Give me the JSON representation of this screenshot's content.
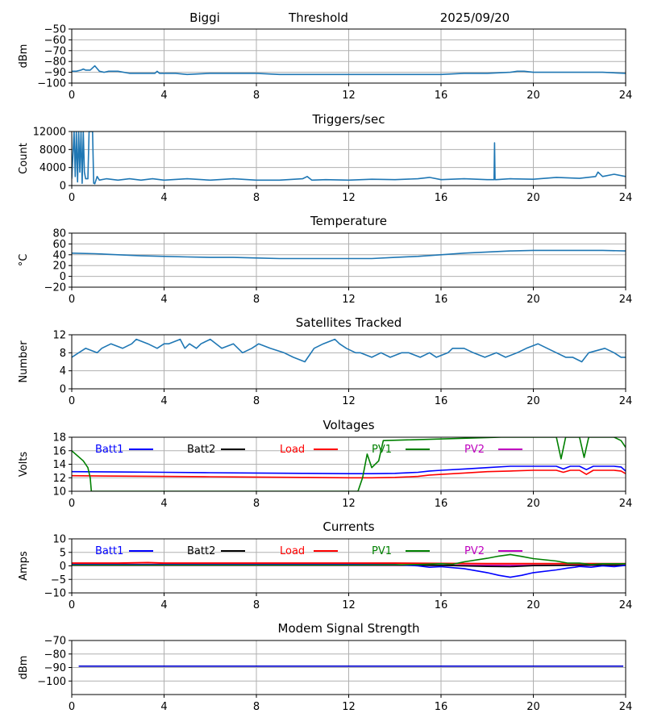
{
  "header": {
    "station": "Biggi",
    "mode": "Threshold",
    "date": "2025/09/20"
  },
  "colors": {
    "default": "#1f77b4",
    "batt1": "#0000ff",
    "batt2": "#000000",
    "load": "#ff0000",
    "pv1": "#008000",
    "pv2": "#bf00bf",
    "modem": "#0000cc"
  },
  "chart_data": [
    {
      "id": "threshold",
      "type": "line",
      "title": "",
      "ylabel": "dBm",
      "xlim": [
        0,
        24
      ],
      "ylim": [
        -100,
        -50
      ],
      "xticks": [
        0,
        4,
        8,
        12,
        16,
        20,
        24
      ],
      "yticks": [
        -100,
        -90,
        -80,
        -70,
        -60,
        -50
      ],
      "series": [
        {
          "name": "threshold",
          "color": "#1f77b4",
          "x": [
            0,
            0.2,
            0.4,
            0.5,
            0.6,
            0.8,
            1.0,
            1.2,
            1.4,
            1.6,
            2.0,
            2.5,
            3.0,
            3.6,
            3.7,
            3.8,
            4.5,
            5.0,
            6.0,
            7.0,
            8.0,
            9.0,
            10.0,
            11.0,
            12.0,
            13.0,
            14.0,
            15.0,
            16.0,
            17.0,
            18.0,
            19.0,
            19.3,
            19.6,
            20.0,
            21.0,
            22.0,
            23.0,
            24.0
          ],
          "y": [
            -89,
            -89,
            -88,
            -87,
            -88,
            -88,
            -84,
            -89,
            -90,
            -89,
            -89,
            -91,
            -91,
            -91,
            -89,
            -91,
            -91,
            -92,
            -91,
            -91,
            -91,
            -92,
            -92,
            -92,
            -92,
            -92,
            -92,
            -92,
            -92,
            -91,
            -91,
            -90,
            -89,
            -89,
            -90,
            -90,
            -90,
            -90,
            -91
          ]
        }
      ]
    },
    {
      "id": "triggers",
      "type": "line",
      "title": "Triggers/sec",
      "ylabel": "Count",
      "xlim": [
        0,
        24
      ],
      "ylim": [
        0,
        12000
      ],
      "xticks": [
        0,
        4,
        8,
        12,
        16,
        20,
        24
      ],
      "yticks": [
        0,
        4000,
        8000,
        12000
      ],
      "series": [
        {
          "name": "triggers",
          "color": "#1f77b4",
          "x": [
            0,
            0.1,
            0.15,
            0.2,
            0.25,
            0.3,
            0.35,
            0.4,
            0.45,
            0.5,
            0.55,
            0.6,
            0.7,
            0.75,
            0.8,
            0.85,
            0.9,
            0.95,
            1.0,
            1.1,
            1.2,
            1.5,
            2.0,
            2.5,
            3.0,
            3.5,
            4.0,
            5.0,
            6.0,
            7.0,
            8.0,
            9.0,
            10.0,
            10.2,
            10.4,
            11.0,
            12.0,
            13.0,
            14.0,
            15.0,
            15.5,
            16.0,
            17.0,
            18.0,
            18.3,
            18.32,
            18.34,
            18.4,
            19.0,
            20.0,
            21.0,
            22.0,
            22.7,
            22.8,
            23.0,
            23.5,
            24.0
          ],
          "y": [
            1500,
            12000,
            2000,
            12000,
            800,
            12000,
            3000,
            12000,
            500,
            12000,
            3000,
            1500,
            1500,
            12000,
            12000,
            12000,
            12000,
            500,
            400,
            2000,
            1200,
            1500,
            1200,
            1500,
            1200,
            1500,
            1200,
            1500,
            1200,
            1500,
            1200,
            1200,
            1500,
            2000,
            1200,
            1300,
            1200,
            1400,
            1300,
            1500,
            1800,
            1300,
            1500,
            1300,
            1300,
            9500,
            1300,
            1300,
            1500,
            1400,
            1800,
            1600,
            2000,
            3000,
            2000,
            2500,
            2000
          ]
        }
      ]
    },
    {
      "id": "temperature",
      "type": "line",
      "title": "Temperature",
      "ylabel": "°C",
      "xlim": [
        0,
        24
      ],
      "ylim": [
        -20,
        80
      ],
      "xticks": [
        0,
        4,
        8,
        12,
        16,
        20,
        24
      ],
      "yticks": [
        -20,
        0,
        20,
        40,
        60,
        80
      ],
      "series": [
        {
          "name": "temperature",
          "color": "#1f77b4",
          "x": [
            0,
            1,
            2,
            3,
            4,
            5,
            6,
            7,
            8,
            9,
            10,
            11,
            12,
            13,
            14,
            15,
            16,
            17,
            18,
            19,
            20,
            21,
            22,
            23,
            24
          ],
          "y": [
            43,
            42,
            40,
            38,
            37,
            36,
            35,
            35,
            34,
            33,
            33,
            33,
            33,
            33,
            35,
            37,
            40,
            43,
            45,
            47,
            48,
            48,
            48,
            48,
            47
          ]
        }
      ]
    },
    {
      "id": "satellites",
      "type": "line",
      "title": "Satellites Tracked",
      "ylabel": "Number",
      "xlim": [
        0,
        24
      ],
      "ylim": [
        0,
        12
      ],
      "xticks": [
        0,
        4,
        8,
        12,
        16,
        20,
        24
      ],
      "yticks": [
        0,
        4,
        8,
        12
      ],
      "series": [
        {
          "name": "satellites",
          "color": "#1f77b4",
          "x": [
            0,
            0.3,
            0.6,
            1.1,
            1.3,
            1.7,
            2.2,
            2.6,
            2.8,
            3.3,
            3.7,
            4.0,
            4.2,
            4.7,
            4.9,
            5.1,
            5.4,
            5.6,
            6.0,
            6.5,
            7.0,
            7.4,
            7.8,
            8.1,
            8.6,
            9.2,
            9.6,
            10.1,
            10.5,
            10.9,
            11.4,
            11.6,
            11.9,
            12.3,
            12.5,
            13.0,
            13.4,
            13.8,
            14.3,
            14.6,
            15.1,
            15.5,
            15.8,
            16.3,
            16.5,
            17.0,
            17.4,
            17.9,
            18.4,
            18.8,
            19.3,
            19.7,
            20.2,
            20.6,
            21.0,
            21.4,
            21.7,
            22.1,
            22.4,
            23.1,
            23.5,
            23.8,
            24.0
          ],
          "y": [
            7,
            8,
            9,
            8,
            9,
            10,
            9,
            10,
            11,
            10,
            9,
            10,
            10,
            11,
            9,
            10,
            9,
            10,
            11,
            9,
            10,
            8,
            9,
            10,
            9,
            8,
            7,
            6,
            9,
            10,
            11,
            10,
            9,
            8,
            8,
            7,
            8,
            7,
            8,
            8,
            7,
            8,
            7,
            8,
            9,
            9,
            8,
            7,
            8,
            7,
            8,
            9,
            10,
            9,
            8,
            7,
            7,
            6,
            8,
            9,
            8,
            7,
            7
          ]
        }
      ]
    },
    {
      "id": "voltages",
      "type": "line",
      "title": "Voltages",
      "ylabel": "Volts",
      "xlim": [
        0,
        24
      ],
      "ylim": [
        10,
        18
      ],
      "xticks": [
        0,
        4,
        8,
        12,
        16,
        20,
        24
      ],
      "yticks": [
        10,
        12,
        14,
        16,
        18
      ],
      "legend": [
        "Batt1",
        "Batt2",
        "Load",
        "PV1",
        "PV2"
      ],
      "series": [
        {
          "name": "Batt1",
          "color": "#0000ff",
          "x": [
            0,
            2,
            4,
            6,
            8,
            10,
            12,
            13,
            14,
            15,
            15.5,
            16,
            17,
            18,
            19,
            20,
            21,
            21.3,
            21.6,
            22,
            22.3,
            22.6,
            23,
            23.5,
            23.8,
            24
          ],
          "y": [
            12.9,
            12.85,
            12.8,
            12.75,
            12.7,
            12.65,
            12.6,
            12.6,
            12.65,
            12.8,
            13.0,
            13.1,
            13.3,
            13.5,
            13.7,
            13.7,
            13.7,
            13.3,
            13.7,
            13.7,
            13.2,
            13.7,
            13.7,
            13.7,
            13.6,
            13.0
          ]
        },
        {
          "name": "Load",
          "color": "#ff0000",
          "x": [
            0,
            2,
            4,
            6,
            8,
            10,
            12,
            13,
            14,
            15,
            15.5,
            16,
            17,
            18,
            19,
            20,
            21,
            21.3,
            21.6,
            22,
            22.3,
            22.6,
            23,
            23.5,
            23.8,
            24
          ],
          "y": [
            12.3,
            12.25,
            12.2,
            12.15,
            12.1,
            12.05,
            12.0,
            12.0,
            12.05,
            12.2,
            12.4,
            12.5,
            12.7,
            12.9,
            13.0,
            13.1,
            13.1,
            12.8,
            13.1,
            13.1,
            12.5,
            13.1,
            13.1,
            13.1,
            13.0,
            12.6
          ]
        },
        {
          "name": "PV1",
          "color": "#008000",
          "x": [
            0,
            0.5,
            0.7,
            0.8,
            0.85,
            12.4,
            12.6,
            12.8,
            13.0,
            13.3,
            13.5,
            18.6,
            19.0,
            20.5,
            21.0,
            21.2,
            21.4,
            21.6,
            22.0,
            22.2,
            22.4,
            23.0,
            23.5,
            23.8,
            24.0
          ],
          "y": [
            16.0,
            14.5,
            13.5,
            12.0,
            10.0,
            10.0,
            12.0,
            15.5,
            13.5,
            14.5,
            17.5,
            18.0,
            18.0,
            18.0,
            18.0,
            14.8,
            18.0,
            18.0,
            18.0,
            15.0,
            18.0,
            18.0,
            18.0,
            17.5,
            16.5
          ]
        }
      ]
    },
    {
      "id": "currents",
      "type": "line",
      "title": "Currents",
      "ylabel": "Amps",
      "xlim": [
        0,
        24
      ],
      "ylim": [
        -10,
        10
      ],
      "xticks": [
        0,
        4,
        8,
        12,
        16,
        20,
        24
      ],
      "yticks": [
        -10,
        -5,
        0,
        5,
        10
      ],
      "legend": [
        "Batt1",
        "Batt2",
        "Load",
        "PV1",
        "PV2"
      ],
      "series": [
        {
          "name": "PV2",
          "color": "#bf00bf",
          "x": [
            0,
            4,
            8,
            12,
            16,
            20,
            24
          ],
          "y": [
            0.2,
            0.2,
            0.2,
            0.2,
            0.2,
            0.2,
            0.2
          ]
        },
        {
          "name": "Batt2",
          "color": "#000000",
          "x": [
            0,
            4,
            8,
            12,
            14,
            16,
            18,
            19,
            20,
            22,
            24
          ],
          "y": [
            0.3,
            0.3,
            0.3,
            0.3,
            0.3,
            0.2,
            -0.2,
            -0.3,
            0.1,
            0.3,
            0.3
          ]
        },
        {
          "name": "Load",
          "color": "#ff0000",
          "x": [
            0,
            2,
            3.3,
            4,
            8,
            12,
            14,
            16,
            18,
            20,
            22,
            24
          ],
          "y": [
            1.0,
            1.0,
            1.2,
            1.0,
            1.0,
            1.0,
            1.0,
            0.9,
            0.8,
            0.8,
            0.8,
            0.8
          ],
          "width": 2
        },
        {
          "name": "Batt1",
          "color": "#0000ff",
          "x": [
            0,
            4,
            8,
            12,
            14,
            15,
            15.5,
            16,
            17,
            18,
            18.5,
            19,
            19.5,
            20,
            21,
            21.5,
            21.8,
            22,
            22.5,
            23,
            23.5,
            24
          ],
          "y": [
            0.5,
            0.5,
            0.5,
            0.5,
            0.5,
            0,
            -0.5,
            -0.3,
            -1.0,
            -2.5,
            -3.5,
            -4.2,
            -3.5,
            -2.5,
            -1.5,
            -0.8,
            -0.5,
            -0.2,
            -0.5,
            0.0,
            -0.3,
            0.2
          ]
        },
        {
          "name": "PV1",
          "color": "#008000",
          "x": [
            0,
            4,
            8,
            12,
            14,
            15,
            16,
            16.5,
            17,
            18,
            18.5,
            19,
            19.5,
            20,
            21,
            21.5,
            22,
            22.5,
            23,
            24
          ],
          "y": [
            0.3,
            0.3,
            0.3,
            0.3,
            0.4,
            0.5,
            0.8,
            0.6,
            1.5,
            2.8,
            3.6,
            4.2,
            3.5,
            2.7,
            1.8,
            1.0,
            1.0,
            0.5,
            0.8,
            0.8
          ]
        }
      ]
    },
    {
      "id": "modem",
      "type": "line",
      "title": "Modem Signal Strength",
      "ylabel": "dBm",
      "xlim": [
        0,
        24
      ],
      "ylim": [
        -110,
        -70
      ],
      "xticks": [
        0,
        4,
        8,
        12,
        16,
        20,
        24
      ],
      "yticks": [
        -100,
        -90,
        -80,
        -70
      ],
      "series": [
        {
          "name": "modem",
          "color": "#0000cc",
          "x": [
            0.3,
            23.9
          ],
          "y": [
            -89,
            -89
          ]
        }
      ]
    }
  ]
}
